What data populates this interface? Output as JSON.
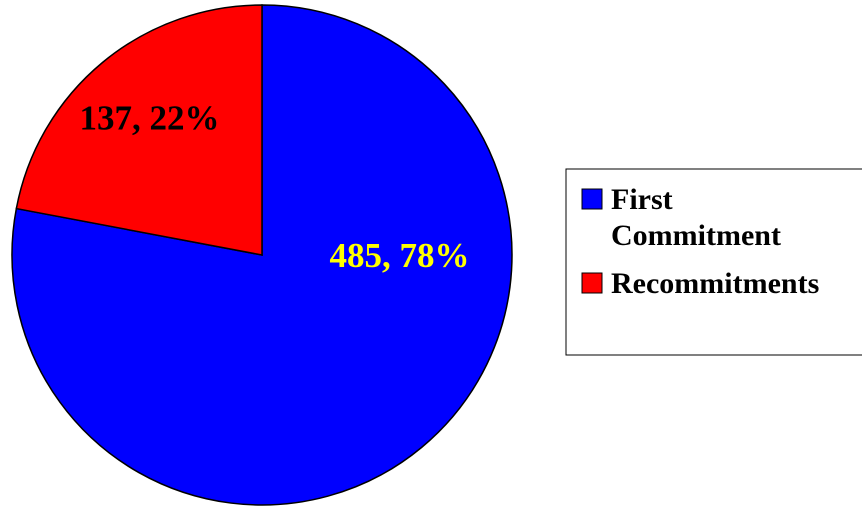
{
  "chart_data": {
    "type": "pie",
    "title": "",
    "slices": [
      {
        "name": "First Commitment",
        "legend_lines": [
          "First",
          "Commitment"
        ],
        "value": 485,
        "percent": 78,
        "label": "485, 78%",
        "color": "#0000FF",
        "label_color": "#FFFF00"
      },
      {
        "name": "Recommitments",
        "legend_lines": [
          "Recommitments"
        ],
        "value": 137,
        "percent": 22,
        "label": "137, 22%",
        "color": "#FF0000",
        "label_color": "#000000"
      }
    ],
    "legend_position": "right"
  }
}
